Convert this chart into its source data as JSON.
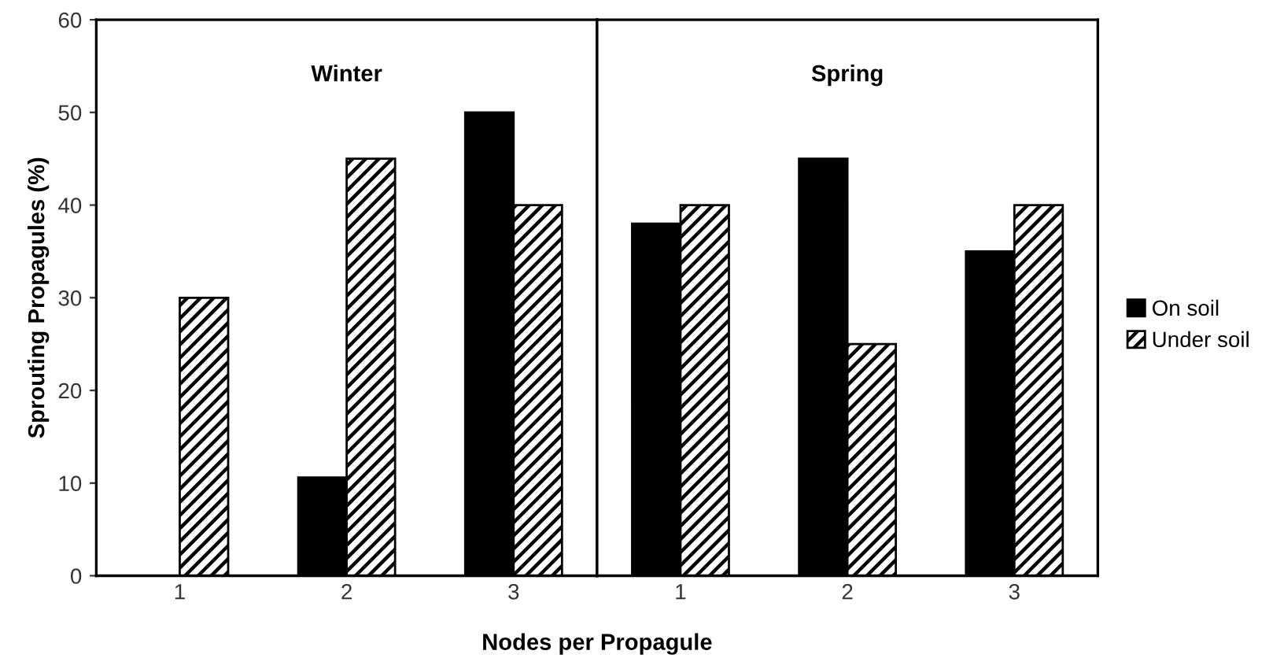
{
  "chart_data": [
    {
      "type": "bar",
      "title": "Winter",
      "xlabel": "Nodes per Propagule",
      "ylabel": "Sprouting Propagules (%)",
      "categories": [
        "1",
        "2",
        "3"
      ],
      "series": [
        {
          "color": "#000000",
          "values": [
            0,
            10.6,
            50
          ]
        },
        {
          "color": "#000000",
          "values": [
            30,
            45,
            40
          ]
        }
      ],
      "ylim": [
        0,
        60
      ],
      "yticks": [
        0,
        10,
        20,
        30,
        40,
        50,
        60
      ],
      "grid": false
    },
    {
      "type": "bar",
      "title": "Spring",
      "categories": [
        "1",
        "2",
        "3"
      ],
      "series": [
        {
          "name": "On soil",
          "color": "#000000",
          "values": [
            38,
            45,
            35
          ]
        },
        {
          "name": "Under soil",
          "color": "#000000",
          "values": [
            40,
            25,
            40
          ]
        }
      ],
      "ylim": [
        0,
        60
      ],
      "yticks": [
        0,
        10,
        20,
        30,
        40,
        50,
        60
      ],
      "grid": false,
      "legend": "right",
      "tick_labels": "x"
    }
  ]
}
